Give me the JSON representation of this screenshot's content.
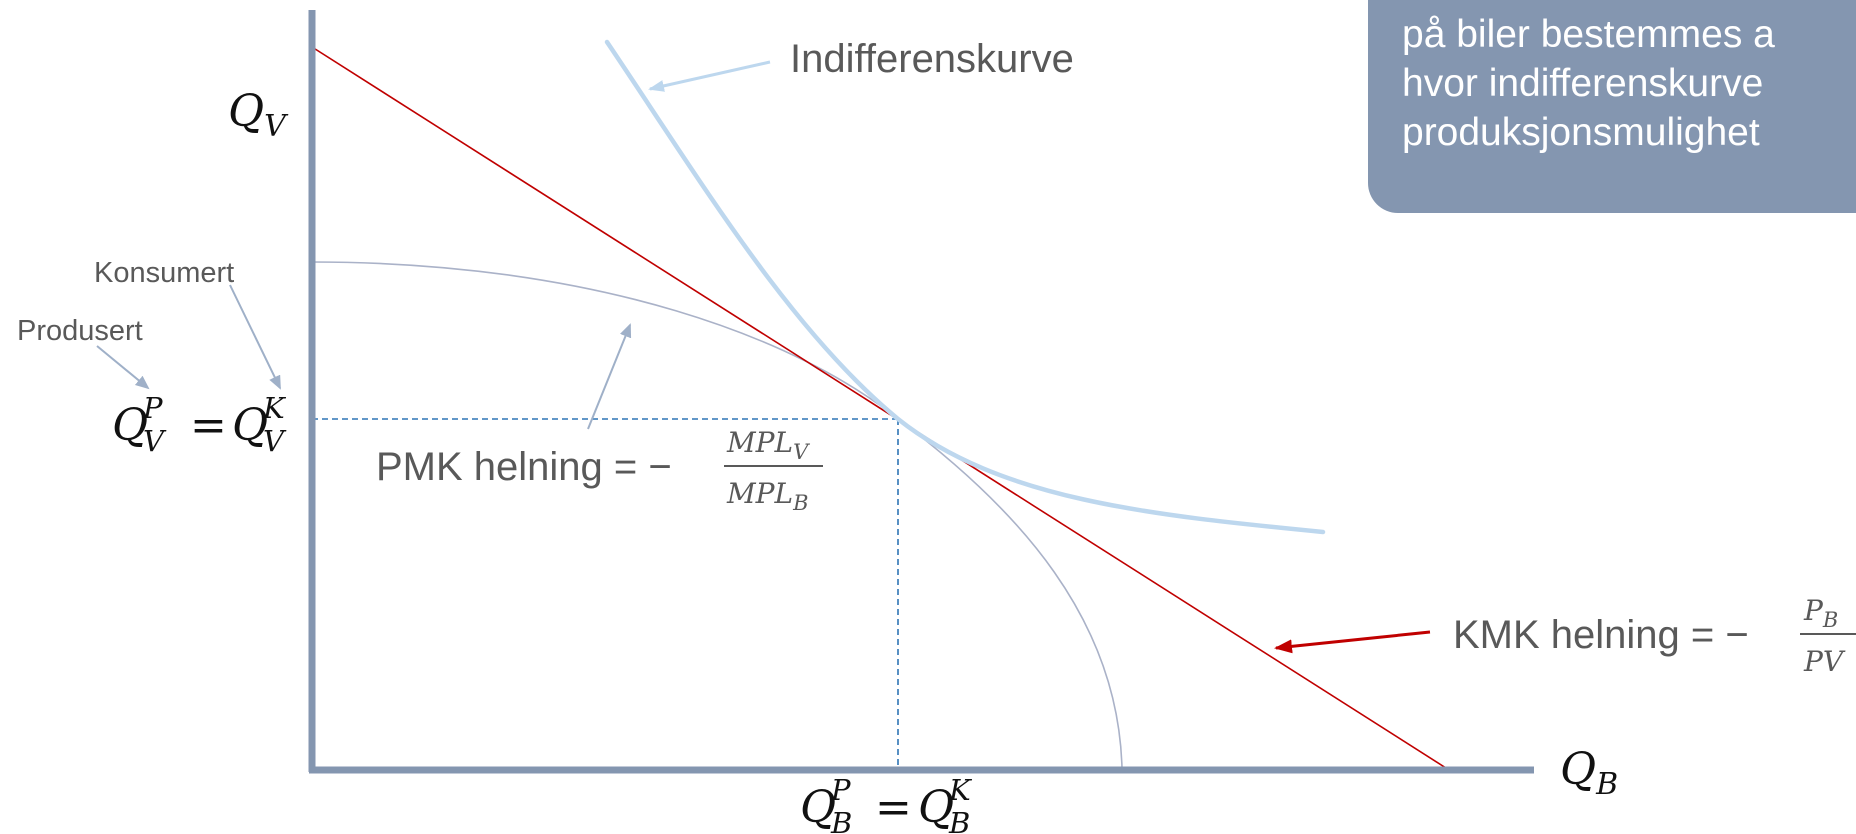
{
  "callout": {
    "lines": [
      "på biler bestemmes a",
      "hvor indifferenskurve",
      "produksjonsmulighet"
    ]
  },
  "labels": {
    "y_axis_base": "Q",
    "y_axis_sub": "V",
    "x_axis_base": "Q",
    "x_axis_sub": "B",
    "indifference_curve": "Indifferenskurve",
    "consumed": "Konsumert",
    "produced": "Produsert",
    "qv_equality": {
      "base": "Q",
      "sub": "V",
      "sup_left": "P",
      "sup_right": "K",
      "equals": "="
    },
    "qb_equality": {
      "base": "Q",
      "sub": "B",
      "sup_left": "P",
      "sup_right": "K",
      "equals": "="
    },
    "pmk_slope": {
      "text": "PMK helning = −",
      "numerator": "MPL",
      "numerator_sub": "V",
      "denominator": "MPL",
      "denominator_sub": "B"
    },
    "kmk_slope": {
      "text": "KMK helning = −",
      "numerator": "P",
      "numerator_sub": "B",
      "denominator": "PV"
    }
  },
  "colors": {
    "axis": "#8496b0",
    "budget_line": "#c00000",
    "indifference_curve": "#bdd7ee",
    "ppf": "#aab2c8",
    "dashed_guides": "#2e75b6",
    "callout_bg": "#8496b0",
    "arrow_gray": "#9fb0c8"
  }
}
